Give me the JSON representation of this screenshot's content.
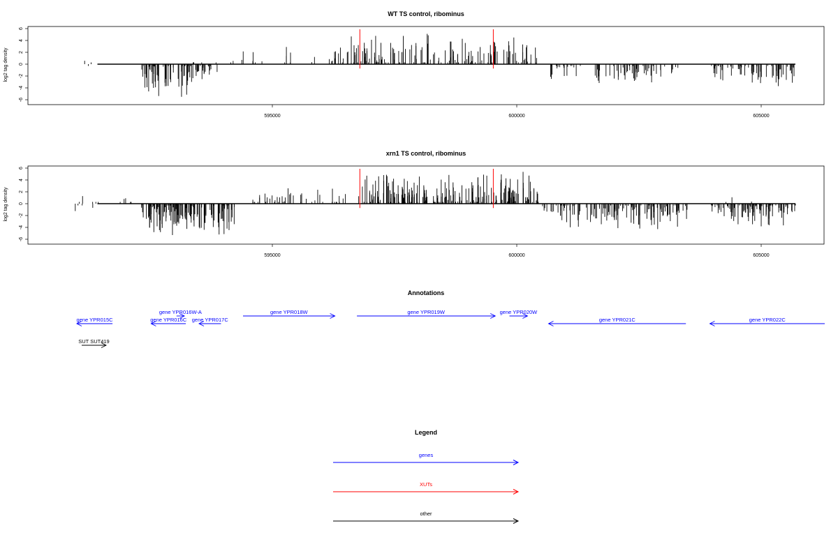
{
  "colors": {
    "gene": "#0000ff",
    "xut": "#ff0000",
    "other": "#000000",
    "signal": "#000000",
    "marker": "#ff0000"
  },
  "chart_data": [
    {
      "type": "bar",
      "title": "WT TS control, ribominus",
      "ylabel": "log2 tag density",
      "xlim": [
        590850,
        605700
      ],
      "ylim": [
        -6,
        6
      ],
      "xticks": [
        595000,
        600000,
        605000
      ],
      "xtick_labels": [
        "595000",
        "600000",
        "605000"
      ],
      "yticks": [
        -6,
        -4,
        -2,
        0,
        2,
        4,
        6
      ],
      "ytick_labels": [
        "-6",
        "-4",
        "-2",
        "0",
        "2",
        "4",
        "6"
      ],
      "baseline_range": [
        590850,
        605700
      ],
      "markers": [
        596790,
        599520
      ],
      "clusters": [
        {
          "start": 591100,
          "end": 591900,
          "n": 2,
          "sign": 1,
          "max": 1.0,
          "seed": 11
        },
        {
          "start": 591200,
          "end": 591350,
          "n": 1,
          "sign": -1,
          "max": 1.6,
          "seed": 12
        },
        {
          "start": 592320,
          "end": 593350,
          "n": 70,
          "sign": -1,
          "max": 5.8,
          "seed": 13
        },
        {
          "start": 593350,
          "end": 593950,
          "n": 22,
          "sign": -1,
          "max": 4.0,
          "seed": 14
        },
        {
          "start": 593200,
          "end": 594000,
          "n": 4,
          "sign": 1,
          "max": 1.2,
          "seed": 15
        },
        {
          "start": 594000,
          "end": 596500,
          "n": 26,
          "sign": 1,
          "max": 3.6,
          "seed": 16
        },
        {
          "start": 596500,
          "end": 600450,
          "n": 150,
          "sign": 1,
          "max": 5.2,
          "seed": 17
        },
        {
          "start": 600650,
          "end": 602200,
          "n": 35,
          "sign": -1,
          "max": 4.2,
          "seed": 18
        },
        {
          "start": 602200,
          "end": 603300,
          "n": 40,
          "sign": -1,
          "max": 3.9,
          "seed": 19
        },
        {
          "start": 603950,
          "end": 605700,
          "n": 70,
          "sign": -1,
          "max": 4.0,
          "seed": 20
        }
      ]
    },
    {
      "type": "bar",
      "title": "xrn1 TS control, ribominus",
      "ylabel": "log2 tag density",
      "xlim": [
        590850,
        605700
      ],
      "ylim": [
        -6,
        6
      ],
      "xticks": [
        595000,
        600000,
        605000
      ],
      "xtick_labels": [
        "595000",
        "600000",
        "605000"
      ],
      "yticks": [
        -6,
        -4,
        -2,
        0,
        2,
        4,
        6
      ],
      "ytick_labels": [
        "-6",
        "-4",
        "-2",
        "0",
        "2",
        "4",
        "6"
      ],
      "baseline_range": [
        590850,
        605700
      ],
      "markers": [
        596790,
        599520
      ],
      "clusters": [
        {
          "start": 590900,
          "end": 591500,
          "n": 5,
          "sign": 1,
          "max": 1.6,
          "seed": 31
        },
        {
          "start": 590900,
          "end": 591400,
          "n": 4,
          "sign": -1,
          "max": 1.5,
          "seed": 32
        },
        {
          "start": 591800,
          "end": 592150,
          "n": 5,
          "sign": 1,
          "max": 1.8,
          "seed": 33
        },
        {
          "start": 592320,
          "end": 593400,
          "n": 110,
          "sign": -1,
          "max": 6.0,
          "seed": 34
        },
        {
          "start": 593400,
          "end": 594250,
          "n": 50,
          "sign": -1,
          "max": 6.3,
          "seed": 35
        },
        {
          "start": 594600,
          "end": 596800,
          "n": 45,
          "sign": 1,
          "max": 3.5,
          "seed": 36
        },
        {
          "start": 596800,
          "end": 600450,
          "n": 230,
          "sign": 1,
          "max": 5.8,
          "seed": 37
        },
        {
          "start": 600500,
          "end": 603500,
          "n": 140,
          "sign": -1,
          "max": 4.8,
          "seed": 38
        },
        {
          "start": 603950,
          "end": 605700,
          "n": 100,
          "sign": -1,
          "max": 4.6,
          "seed": 39
        },
        {
          "start": 604100,
          "end": 605300,
          "n": 3,
          "sign": 1,
          "max": 2.2,
          "seed": 40
        }
      ]
    }
  ],
  "annotations": {
    "title": "Annotations",
    "features": [
      {
        "label": "gene YPR015C",
        "start": 591000,
        "end": 591730,
        "strand": "-",
        "type": "gene",
        "row": 1
      },
      {
        "label": "gene YPR016W-A",
        "start": 593040,
        "end": 593200,
        "strand": "+",
        "type": "gene",
        "row": 0
      },
      {
        "label": "gene YPR016C",
        "start": 592520,
        "end": 593230,
        "strand": "-",
        "type": "gene",
        "row": 1
      },
      {
        "label": "gene YPR017C",
        "start": 593500,
        "end": 593950,
        "strand": "-",
        "type": "gene",
        "row": 1
      },
      {
        "label": "gene YPR018W",
        "start": 594400,
        "end": 596280,
        "strand": "+",
        "type": "gene",
        "row": 0
      },
      {
        "label": "gene YPR019W",
        "start": 596730,
        "end": 599560,
        "strand": "+",
        "type": "gene",
        "row": 0
      },
      {
        "label": "gene YPR020W",
        "start": 599850,
        "end": 600220,
        "strand": "+",
        "type": "gene",
        "row": 0
      },
      {
        "label": "gene YPR021C",
        "start": 600650,
        "end": 603460,
        "strand": "-",
        "type": "gene",
        "row": 1
      },
      {
        "label": "gene YPR022C",
        "start": 603950,
        "end": 606300,
        "strand": "-",
        "type": "gene",
        "row": 1
      },
      {
        "label": "SUT SUT419",
        "start": 591100,
        "end": 591600,
        "strand": "+",
        "type": "other",
        "row": 2
      }
    ]
  },
  "legend": {
    "title": "Legend",
    "items": [
      {
        "label": "genes",
        "type": "gene"
      },
      {
        "label": "XUTs",
        "type": "xut"
      },
      {
        "label": "other",
        "type": "other"
      }
    ]
  }
}
